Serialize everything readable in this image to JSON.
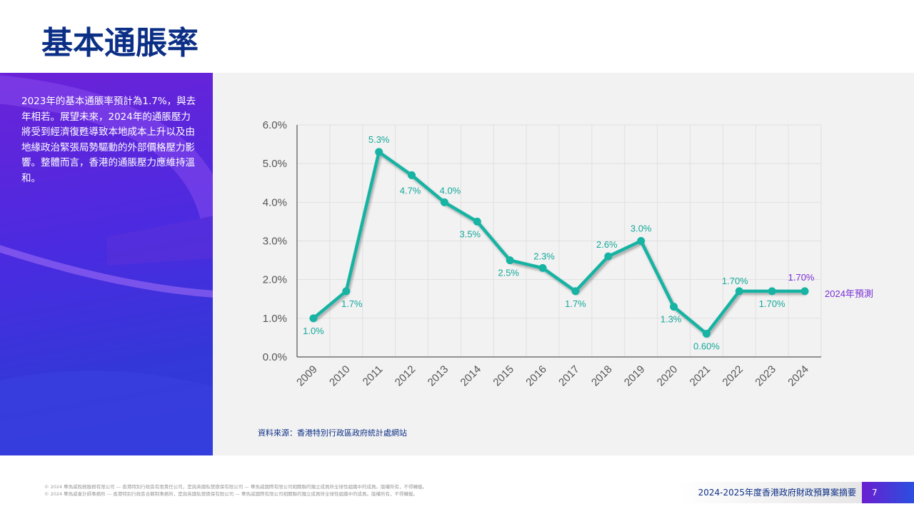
{
  "title": "基本通脹率",
  "intro": "2023年的基本通脹率預計為1.7%，與去年相若。展望未來，2024年的通脹壓力將受到經濟復甦導致本地成本上升以及由地緣政治緊張局勢驅動的外部價格壓力影響。整體而言，香港的通脹壓力應維持溫和。",
  "source": "資料來源：香港特別行政區政府統計處網站",
  "footer": {
    "copyright": [
      "© 2024 畢馬威稅務服務有限公司 — 香港特別行政區有限責任公司，是與英國私營擔保有限公司 — 畢馬威國際有限公司相關聯的獨立成員所全球性組織中的成員。版權所有，不得轉載。",
      "© 2024 畢馬威會計師事務所 — 香港特別行政區合夥制事務所，是與英國私營擔保有限公司 — 畢馬威國際有限公司相關聯的獨立成員所全球性組織中的成員。版權所有，不得轉載。"
    ],
    "report": "2024-2025年度香港政府財政預算案摘要",
    "page": "7"
  },
  "chart_data": {
    "type": "line",
    "categories": [
      "2009",
      "2010",
      "2011",
      "2012",
      "2013",
      "2014",
      "2015",
      "2016",
      "2017",
      "2018",
      "2019",
      "2020",
      "2021",
      "2022",
      "2023",
      "2024"
    ],
    "values": [
      1.0,
      1.7,
      5.3,
      4.7,
      4.0,
      3.5,
      2.5,
      2.3,
      1.7,
      2.6,
      3.0,
      1.3,
      0.6,
      1.7,
      1.7,
      1.7
    ],
    "value_labels": [
      "1.0%",
      "1.7%",
      "5.3%",
      "4.7%",
      "4.0%",
      "3.5%",
      "2.5%",
      "2.3%",
      "1.7%",
      "2.6%",
      "3.0%",
      "1.3%",
      "0.60%",
      "1.70%",
      "1.70%",
      "1.70%"
    ],
    "color": "#17b3a3",
    "ylim": [
      0,
      6
    ],
    "yticks": [
      {
        "value": 0,
        "label": "0.0%"
      },
      {
        "value": 1,
        "label": "1.0%"
      },
      {
        "value": 2,
        "label": "2.0%"
      },
      {
        "value": 3,
        "label": "3.0%"
      },
      {
        "value": 4,
        "label": "4.0%"
      },
      {
        "value": 5,
        "label": "5.0%"
      },
      {
        "value": 6,
        "label": "6.0%"
      }
    ],
    "grid": true,
    "annotation": "2024年預測"
  }
}
